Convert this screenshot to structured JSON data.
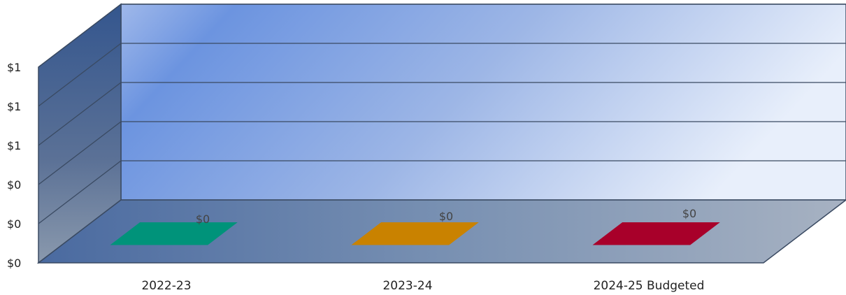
{
  "chart_data": {
    "type": "bar",
    "three_d": true,
    "categories": [
      "2022-23",
      "2023-24",
      "2024-25 Budgeted"
    ],
    "values": [
      0,
      0,
      0
    ],
    "data_labels": [
      "$0",
      "$0",
      "$0"
    ],
    "y_tick_labels": [
      "$0",
      "$0",
      "$0",
      "$1",
      "$1",
      "$1"
    ],
    "ylim": [
      0,
      1
    ],
    "grid": true,
    "legend": "none",
    "title": "",
    "xlabel": "",
    "ylabel": "",
    "bar_colors": [
      "#00937a",
      "#c98200",
      "#a8002a"
    ],
    "wall_colors": {
      "back_left": "#6c94e0",
      "back_right": "#e6eefa",
      "side": "#3e5f92",
      "floor": "#7d93b3",
      "grid_line": "#3a4a62"
    }
  }
}
